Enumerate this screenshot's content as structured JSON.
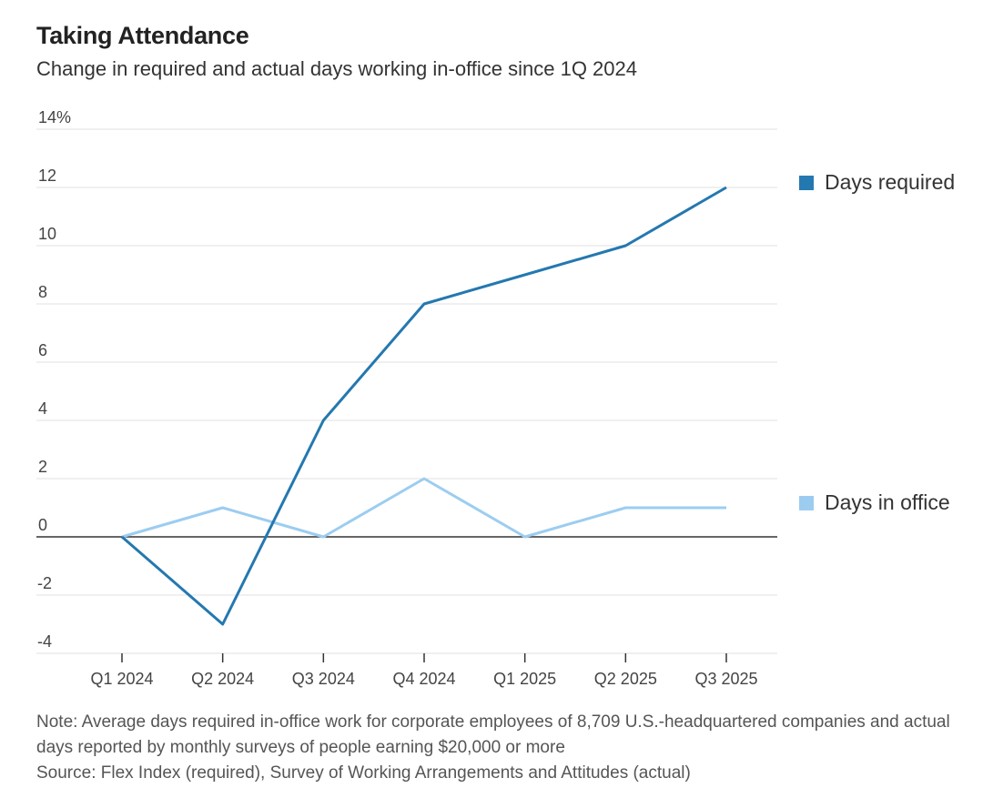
{
  "title": "Taking Attendance",
  "subtitle": "Change in required and actual days working in-office since 1Q 2024",
  "chart_data": {
    "type": "line",
    "categories": [
      "Q1 2024",
      "Q2 2024",
      "Q3 2024",
      "Q4 2024",
      "Q1 2025",
      "Q2 2025",
      "Q3 2025"
    ],
    "series": [
      {
        "name": "Days required",
        "color": "#2478b0",
        "values": [
          0,
          -3,
          4,
          8,
          9,
          10,
          12
        ]
      },
      {
        "name": "Days in office",
        "color": "#9ccdf0",
        "values": [
          0,
          1,
          0,
          2,
          0,
          1,
          1
        ]
      }
    ],
    "yticks": [
      -4,
      -2,
      0,
      2,
      4,
      6,
      8,
      10,
      12,
      14
    ],
    "ytick_labels": [
      "-4",
      "-2",
      "0",
      "2",
      "4",
      "6",
      "8",
      "10",
      "12",
      "14%"
    ],
    "ylim": [
      -4,
      14
    ],
    "grid": true,
    "legend": "right, inline at line ends"
  },
  "note": "Note: Average days required in-office work for corporate employees of 8,709 U.S.-headquartered companies and actual days reported by monthly surveys of people earning $20,000 or more",
  "source": "Source: Flex Index (required), Survey of Working Arrangements and Attitudes (actual)"
}
